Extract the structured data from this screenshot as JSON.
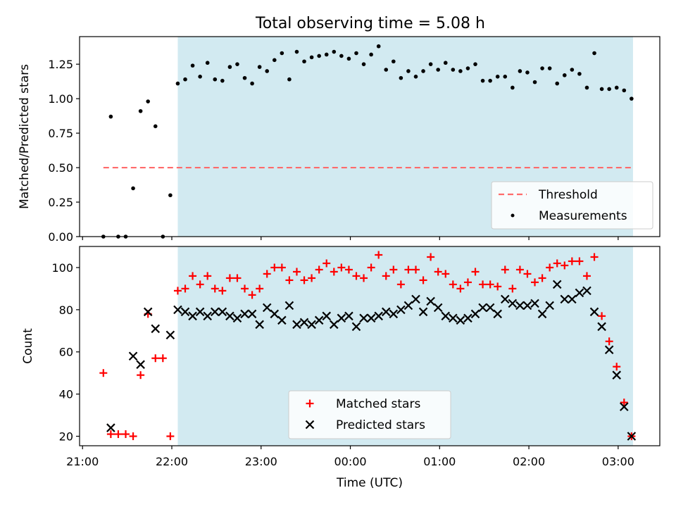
{
  "title": "Total observing time = 5.08 h",
  "colors": {
    "shade": "#add8e6",
    "threshold": "#ff6b6b",
    "matched": "#ff0000",
    "predicted": "#000000",
    "measurement": "#000000"
  },
  "chart_data": [
    {
      "type": "scatter",
      "title": "Total observing time = 5.08 h",
      "xlabel": "",
      "ylabel": "Matched/Predicted stars",
      "xlim": [
        "20:58",
        "03:28"
      ],
      "ylim": [
        0,
        1.45
      ],
      "yticks": [
        "0.00",
        "0.25",
        "0.50",
        "0.75",
        "1.00",
        "1.25"
      ],
      "shaded_span": [
        "22:04",
        "03:10"
      ],
      "legend_position": "lower-right",
      "series": [
        {
          "name": "Threshold",
          "style": "dashed-line",
          "x": [
            "21:14",
            "03:10"
          ],
          "values": [
            0.5,
            0.5
          ]
        },
        {
          "name": "Measurements",
          "style": "dot",
          "x": [
            "21:14",
            "21:19",
            "21:24",
            "21:29",
            "21:34",
            "21:39",
            "21:44",
            "21:49",
            "21:54",
            "21:59",
            "22:04",
            "22:09",
            "22:14",
            "22:19",
            "22:24",
            "22:29",
            "22:34",
            "22:39",
            "22:44",
            "22:49",
            "22:54",
            "22:59",
            "23:04",
            "23:09",
            "23:14",
            "23:19",
            "23:24",
            "23:29",
            "23:34",
            "23:39",
            "23:44",
            "23:49",
            "23:54",
            "23:59",
            "00:04",
            "00:09",
            "00:14",
            "00:19",
            "00:24",
            "00:29",
            "00:34",
            "00:39",
            "00:44",
            "00:49",
            "00:54",
            "00:59",
            "01:04",
            "01:09",
            "01:14",
            "01:19",
            "01:24",
            "01:29",
            "01:34",
            "01:39",
            "01:44",
            "01:49",
            "01:54",
            "01:59",
            "02:04",
            "02:09",
            "02:14",
            "02:19",
            "02:24",
            "02:29",
            "02:34",
            "02:39",
            "02:44",
            "02:49",
            "02:54",
            "02:59",
            "03:04",
            "03:09"
          ],
          "values": [
            0.0,
            0.87,
            0.0,
            0.0,
            0.35,
            0.91,
            0.98,
            0.8,
            0.0,
            0.3,
            1.11,
            1.14,
            1.24,
            1.16,
            1.26,
            1.14,
            1.13,
            1.23,
            1.25,
            1.15,
            1.11,
            1.23,
            1.2,
            1.28,
            1.33,
            1.14,
            1.34,
            1.27,
            1.3,
            1.31,
            1.32,
            1.34,
            1.31,
            1.29,
            1.33,
            1.25,
            1.32,
            1.38,
            1.21,
            1.27,
            1.15,
            1.2,
            1.16,
            1.2,
            1.25,
            1.21,
            1.26,
            1.21,
            1.2,
            1.22,
            1.25,
            1.13,
            1.13,
            1.16,
            1.16,
            1.08,
            1.2,
            1.19,
            1.12,
            1.22,
            1.22,
            1.11,
            1.17,
            1.21,
            1.18,
            1.08,
            1.33,
            1.07,
            1.07,
            1.08,
            1.06,
            1.0
          ]
        }
      ]
    },
    {
      "type": "scatter",
      "xlabel": "Time (UTC)",
      "ylabel": "Count",
      "xlim": [
        "20:58",
        "03:28"
      ],
      "ylim": [
        15.5,
        110
      ],
      "xticks": [
        "21:00",
        "22:00",
        "23:00",
        "00:00",
        "01:00",
        "02:00",
        "03:00"
      ],
      "yticks": [
        "20",
        "40",
        "60",
        "80",
        "100"
      ],
      "shaded_span": [
        "22:04",
        "03:10"
      ],
      "legend_position": "lower-center",
      "x": [
        "21:14",
        "21:19",
        "21:24",
        "21:29",
        "21:34",
        "21:39",
        "21:44",
        "21:49",
        "21:54",
        "21:59",
        "22:04",
        "22:09",
        "22:14",
        "22:19",
        "22:24",
        "22:29",
        "22:34",
        "22:39",
        "22:44",
        "22:49",
        "22:54",
        "22:59",
        "23:04",
        "23:09",
        "23:14",
        "23:19",
        "23:24",
        "23:29",
        "23:34",
        "23:39",
        "23:44",
        "23:49",
        "23:54",
        "23:59",
        "00:04",
        "00:09",
        "00:14",
        "00:19",
        "00:24",
        "00:29",
        "00:34",
        "00:39",
        "00:44",
        "00:49",
        "00:54",
        "00:59",
        "01:04",
        "01:09",
        "01:14",
        "01:19",
        "01:24",
        "01:29",
        "01:34",
        "01:39",
        "01:44",
        "01:49",
        "01:54",
        "01:59",
        "02:04",
        "02:09",
        "02:14",
        "02:19",
        "02:24",
        "02:29",
        "02:34",
        "02:39",
        "02:44",
        "02:49",
        "02:54",
        "02:59",
        "03:04",
        "03:09"
      ],
      "series": [
        {
          "name": "Matched stars",
          "marker": "plus",
          "values": [
            50,
            21,
            21,
            21,
            20,
            49,
            78,
            57,
            57,
            20,
            89,
            90,
            96,
            92,
            96,
            90,
            89,
            95,
            95,
            90,
            87,
            90,
            97,
            100,
            100,
            94,
            98,
            94,
            95,
            99,
            102,
            98,
            100,
            99,
            96,
            95,
            100,
            106,
            96,
            99,
            92,
            99,
            99,
            94,
            105,
            98,
            97,
            92,
            90,
            93,
            98,
            92,
            92,
            91,
            99,
            90,
            99,
            97,
            93,
            95,
            100,
            102,
            101,
            103,
            103,
            96,
            105,
            77,
            65,
            53,
            36,
            20
          ]
        },
        {
          "name": "Predicted stars",
          "marker": "x",
          "values": [
            null,
            24,
            null,
            null,
            58,
            54,
            79,
            71,
            null,
            68,
            80,
            79,
            77,
            79,
            77,
            79,
            79,
            77,
            76,
            78,
            78,
            73,
            81,
            78,
            75,
            82,
            73,
            74,
            73,
            75,
            77,
            73,
            76,
            77,
            72,
            76,
            76,
            77,
            79,
            78,
            80,
            82,
            85,
            79,
            84,
            81,
            77,
            76,
            75,
            76,
            78,
            81,
            81,
            78,
            85,
            83,
            82,
            82,
            83,
            78,
            82,
            92,
            85,
            85,
            88,
            89,
            79,
            72,
            61,
            49,
            34,
            20
          ]
        }
      ]
    }
  ]
}
